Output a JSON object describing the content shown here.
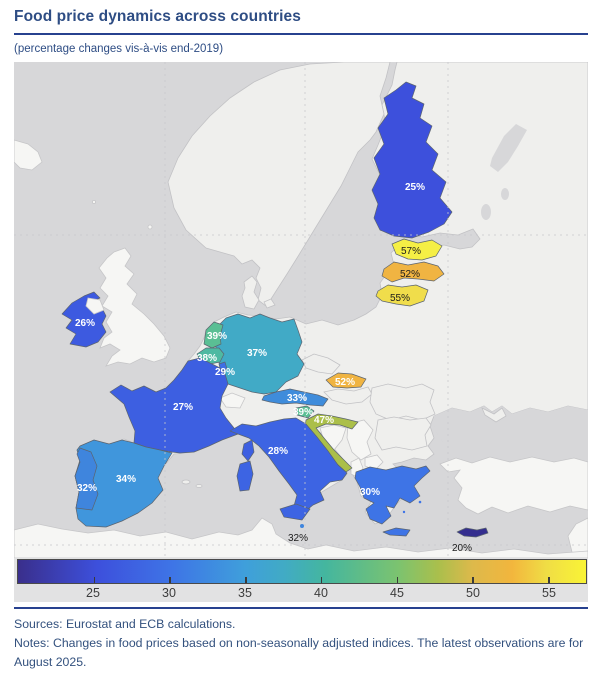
{
  "header": {
    "title": "Food price dynamics across countries",
    "subtitle": "(percentage changes vis-à-vis end-2019)"
  },
  "footer": {
    "sources": "Sources: Eurostat and ECB calculations.",
    "notes": "Notes: Changes in food prices based on non-seasonally adjusted indices. The latest observations are for August 2025."
  },
  "colors": {
    "accent_rule": "#27418f",
    "title_text": "#2e4d84",
    "footer_text": "#33517e",
    "sea": "#d7d7d9"
  },
  "chart_data": {
    "type": "choropleth",
    "region": "Europe — euro area countries",
    "title": "Food price dynamics across countries",
    "subtitle": "(percentage changes vis-à-vis end-2019)",
    "unit": "%",
    "series": [
      {
        "code": "FI",
        "country": "Finland",
        "value": 25,
        "label": "25%",
        "fill": "#3d50dc",
        "label_color": "#ffffff"
      },
      {
        "code": "EE",
        "country": "Estonia",
        "value": 57,
        "label": "57%",
        "fill": "#f5ef45",
        "label_color": "#1c1c1c"
      },
      {
        "code": "LV",
        "country": "Latvia",
        "value": 52,
        "label": "52%",
        "fill": "#f0b442",
        "label_color": "#1c1c1c"
      },
      {
        "code": "LT",
        "country": "Lithuania",
        "value": 55,
        "label": "55%",
        "fill": "#f0dd4b",
        "label_color": "#1c1c1c"
      },
      {
        "code": "IE",
        "country": "Ireland",
        "value": 26,
        "label": "26%",
        "fill": "#3d5ae0",
        "label_color": "#ffffff"
      },
      {
        "code": "NL",
        "country": "Netherlands",
        "value": 39,
        "label": "39%",
        "fill": "#5abf94",
        "label_color": "#ffffff"
      },
      {
        "code": "BE",
        "country": "Belgium",
        "value": 38,
        "label": "38%",
        "fill": "#4eb9a2",
        "label_color": "#ffffff"
      },
      {
        "code": "LU",
        "country": "Luxembourg",
        "value": 29,
        "label": "29%",
        "fill": "#3e6fe4",
        "label_color": "#ffffff"
      },
      {
        "code": "DE",
        "country": "Germany",
        "value": 37,
        "label": "37%",
        "fill": "#41aac6",
        "label_color": "#ffffff"
      },
      {
        "code": "FR",
        "country": "France",
        "value": 27,
        "label": "27%",
        "fill": "#3d5fe1",
        "label_color": "#ffffff"
      },
      {
        "code": "AT",
        "country": "Austria",
        "value": 33,
        "label": "33%",
        "fill": "#3f8cdb",
        "label_color": "#ffffff"
      },
      {
        "code": "SI",
        "country": "Slovenia",
        "value": 39,
        "label": "39%",
        "fill": "#5abf94",
        "label_color": "#ffffff"
      },
      {
        "code": "HR",
        "country": "Croatia",
        "value": 47,
        "label": "47%",
        "fill": "#abbf49",
        "label_color": "#ffffff"
      },
      {
        "code": "SK",
        "country": "Slovakia",
        "value": 52,
        "label": "52%",
        "fill": "#f0b442",
        "label_color": "#ffffff"
      },
      {
        "code": "IT",
        "country": "Italy",
        "value": 28,
        "label": "28%",
        "fill": "#3d64e3",
        "label_color": "#ffffff"
      },
      {
        "code": "ES",
        "country": "Spain",
        "value": 34,
        "label": "34%",
        "fill": "#4096dc",
        "label_color": "#ffffff"
      },
      {
        "code": "PT",
        "country": "Portugal",
        "value": 32,
        "label": "32%",
        "fill": "#3f85dd",
        "label_color": "#ffffff"
      },
      {
        "code": "GR",
        "country": "Greece",
        "value": 30,
        "label": "30%",
        "fill": "#3e74e6",
        "label_color": "#ffffff"
      },
      {
        "code": "MT",
        "country": "Malta",
        "value": 32,
        "label": "32%",
        "fill": "#3f85dd",
        "label_color": "#1c1c1c"
      },
      {
        "code": "CY",
        "country": "Cyprus",
        "value": 20,
        "label": "20%",
        "fill": "#342e8f",
        "label_color": "#1c1c1c"
      }
    ],
    "colorbar": {
      "min": 20,
      "max": 57.5,
      "ticks": [
        25,
        30,
        35,
        40,
        45,
        50,
        55
      ],
      "gradient": [
        {
          "pos": 0.0,
          "color": "#3a2f8c"
        },
        {
          "pos": 0.14,
          "color": "#3d50dc"
        },
        {
          "pos": 0.27,
          "color": "#3e74e6"
        },
        {
          "pos": 0.4,
          "color": "#3f9fdb"
        },
        {
          "pos": 0.47,
          "color": "#41abc4"
        },
        {
          "pos": 0.54,
          "color": "#44b69f"
        },
        {
          "pos": 0.67,
          "color": "#7cc36f"
        },
        {
          "pos": 0.74,
          "color": "#aabf4c"
        },
        {
          "pos": 0.8,
          "color": "#ddb94b"
        },
        {
          "pos": 0.87,
          "color": "#f2b63d"
        },
        {
          "pos": 0.93,
          "color": "#f0dd45"
        },
        {
          "pos": 1.0,
          "color": "#f9f436"
        }
      ]
    },
    "legend_position": "bottom",
    "grid": "dashed graticule"
  }
}
